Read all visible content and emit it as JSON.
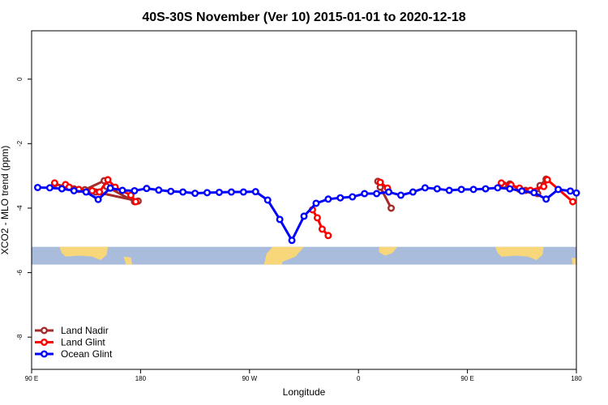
{
  "chart_data": {
    "type": "line",
    "title": "40S-30S November (Ver 10)   2015-01-01 to 2020-12-18",
    "xlabel": "Longitude",
    "ylabel": "XCO2 - MLO trend (ppm)",
    "xlim": [
      90,
      540
    ],
    "ylim": [
      -9.0,
      1.5
    ],
    "x_ticks": [
      {
        "value": 90,
        "label": "90 E"
      },
      {
        "value": 180,
        "label": "180"
      },
      {
        "value": 270,
        "label": "90 W"
      },
      {
        "value": 360,
        "label": "0"
      },
      {
        "value": 450,
        "label": "90 E"
      },
      {
        "value": 540,
        "label": "180"
      }
    ],
    "y_ticks": [
      0,
      -2,
      -4,
      -6,
      -8
    ],
    "map_strip": {
      "ymin": -5.75,
      "ymax": -5.2,
      "ocean_color": "#a9bcdb",
      "land_color": "#f7d77a"
    },
    "series": [
      {
        "name": "Land Nadir",
        "color": "#a52a2a",
        "points": [
          [
            118,
            -3.3
          ],
          [
            125,
            -3.4
          ],
          [
            134,
            -3.43
          ],
          [
            150,
            -3.15
          ],
          [
            152,
            -3.33
          ],
          [
            175,
            -3.8
          ],
          [
            109,
            -3.25
          ],
          [
            120,
            -3.35
          ],
          [
            143,
            -3.5
          ],
          [
            178,
            -3.78
          ],
          [
            376,
            -3.17
          ],
          [
            378,
            -3.35
          ],
          [
            387,
            -4.0
          ],
          [
            480,
            -3.28
          ],
          [
            485,
            -3.25
          ],
          [
            493,
            -3.42
          ],
          [
            498,
            -3.45
          ],
          [
            508,
            -3.55
          ],
          [
            510,
            -3.3
          ],
          [
            515,
            -3.1
          ]
        ]
      },
      {
        "name": "Land Glint",
        "color": "#ff0000",
        "points": [
          [
            118,
            -3.27
          ],
          [
            121,
            -3.35
          ],
          [
            129,
            -3.42
          ],
          [
            140,
            -3.46
          ],
          [
            146,
            -3.5
          ],
          [
            153,
            -3.12
          ],
          [
            159,
            -3.35
          ],
          [
            172,
            -3.6
          ],
          [
            176,
            -3.8
          ],
          [
            109,
            -3.22
          ],
          [
            322,
            -4.05
          ],
          [
            326,
            -4.3
          ],
          [
            330,
            -4.65
          ],
          [
            335,
            -4.85
          ],
          [
            378,
            -3.2
          ],
          [
            384,
            -3.38
          ],
          [
            478,
            -3.22
          ],
          [
            486,
            -3.28
          ],
          [
            493,
            -3.38
          ],
          [
            502,
            -3.45
          ],
          [
            513,
            -3.33
          ],
          [
            516,
            -3.12
          ],
          [
            537,
            -3.8
          ]
        ]
      },
      {
        "name": "Ocean Glint",
        "color": "#0000ff",
        "points": [
          [
            95,
            -3.36
          ],
          [
            105,
            -3.37
          ],
          [
            115,
            -3.4
          ],
          [
            125,
            -3.46
          ],
          [
            135,
            -3.5
          ],
          [
            145,
            -3.73
          ],
          [
            155,
            -3.38
          ],
          [
            165,
            -3.45
          ],
          [
            175,
            -3.46
          ],
          [
            185,
            -3.39
          ],
          [
            195,
            -3.44
          ],
          [
            205,
            -3.48
          ],
          [
            215,
            -3.5
          ],
          [
            225,
            -3.54
          ],
          [
            235,
            -3.52
          ],
          [
            245,
            -3.51
          ],
          [
            255,
            -3.5
          ],
          [
            265,
            -3.5
          ],
          [
            275,
            -3.49
          ],
          [
            285,
            -3.75
          ],
          [
            295,
            -4.35
          ],
          [
            305,
            -5.0
          ],
          [
            315,
            -4.25
          ],
          [
            325,
            -3.85
          ],
          [
            335,
            -3.72
          ],
          [
            345,
            -3.68
          ],
          [
            355,
            -3.65
          ],
          [
            365,
            -3.55
          ],
          [
            375,
            -3.55
          ],
          [
            385,
            -3.5
          ],
          [
            395,
            -3.6
          ],
          [
            405,
            -3.5
          ],
          [
            415,
            -3.37
          ],
          [
            425,
            -3.4
          ],
          [
            435,
            -3.45
          ],
          [
            445,
            -3.42
          ],
          [
            455,
            -3.42
          ],
          [
            465,
            -3.4
          ],
          [
            475,
            -3.37
          ],
          [
            485,
            -3.4
          ],
          [
            495,
            -3.47
          ],
          [
            505,
            -3.52
          ],
          [
            515,
            -3.72
          ],
          [
            525,
            -3.42
          ],
          [
            535,
            -3.47
          ],
          [
            540,
            -3.53
          ]
        ]
      }
    ],
    "legend": {
      "position": "bottom-left",
      "entries": [
        "Land Nadir",
        "Land Glint",
        "Ocean Glint"
      ]
    }
  }
}
